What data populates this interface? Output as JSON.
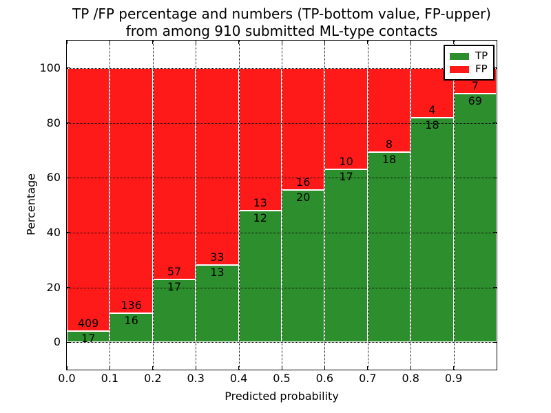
{
  "figure": {
    "title_line1": "TP /FP percentage and numbers (TP-bottom value, FP-upper)",
    "title_line2": "from among 910 submitted ML-type contacts"
  },
  "chart_data": {
    "type": "bar",
    "stacked": true,
    "normalized_to_percent": true,
    "title": "TP /FP percentage and numbers (TP-bottom value, FP-upper)\nfrom among 910 submitted ML-type contacts",
    "xlabel": "Predicted probability",
    "ylabel": "Percentage",
    "total_contacts": 910,
    "xlim": [
      0.0,
      1.0
    ],
    "ylim": [
      -10,
      110
    ],
    "bin_width": 0.1,
    "categories": [
      "0.0-0.1",
      "0.1-0.2",
      "0.2-0.3",
      "0.3-0.4",
      "0.4-0.5",
      "0.5-0.6",
      "0.6-0.7",
      "0.7-0.8",
      "0.8-0.9",
      "0.9-1.0"
    ],
    "xtick_labels": [
      "0.0",
      "0.1",
      "0.2",
      "0.3",
      "0.4",
      "0.5",
      "0.6",
      "0.7",
      "0.8",
      "0.9"
    ],
    "ytick_values": [
      0,
      20,
      40,
      60,
      80,
      100
    ],
    "ytick_labels": [
      "0",
      "20",
      "40",
      "60",
      "80",
      "100"
    ],
    "grid": "dotted-black-both-axes",
    "series": [
      {
        "name": "TP",
        "color": "#2d8e2d",
        "values": [
          17,
          16,
          17,
          13,
          12,
          20,
          17,
          18,
          18,
          69
        ]
      },
      {
        "name": "FP",
        "color": "#ff1a1a",
        "values": [
          409,
          136,
          57,
          33,
          13,
          16,
          10,
          8,
          4,
          7
        ]
      }
    ],
    "tp_percent_per_bin": [
      3.99,
      10.53,
      22.97,
      28.26,
      48.0,
      55.56,
      62.96,
      69.23,
      81.82,
      90.79
    ],
    "legend": {
      "position": "upper right",
      "entries": [
        {
          "label": "TP",
          "color": "#2d8e2d"
        },
        {
          "label": "FP",
          "color": "#ff1a1a"
        }
      ]
    }
  }
}
